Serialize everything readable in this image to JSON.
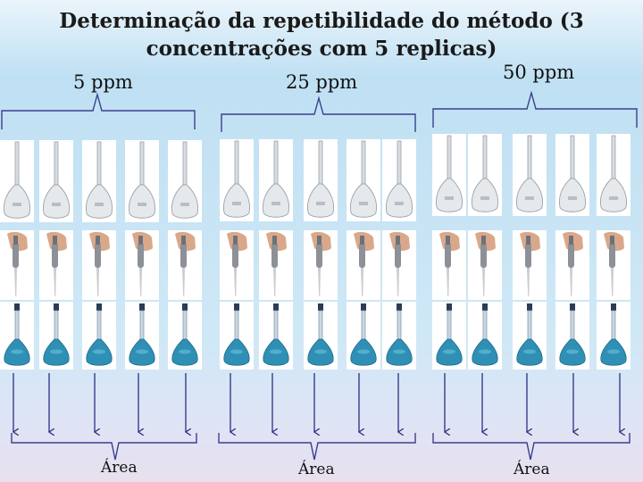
{
  "title": {
    "line1": "Determinação da repetibilidade do método  (3",
    "line2": "concentrações com 5 replicas)"
  },
  "groups": [
    {
      "label": "5 ppm",
      "area_label": "Área"
    },
    {
      "label": "25 ppm",
      "area_label": "Área"
    },
    {
      "label": "50 ppm",
      "area_label": "Área"
    }
  ],
  "colors": {
    "bracket": "#3a3f8f",
    "arrow": "#2b2f80",
    "liquid": "#2f8fb5",
    "glass": "#d9dde2"
  },
  "icons": {
    "empty_flask": "volumetric-flask-icon",
    "pipette": "pipette-icon",
    "filled_flask": "filled-flask-icon"
  }
}
